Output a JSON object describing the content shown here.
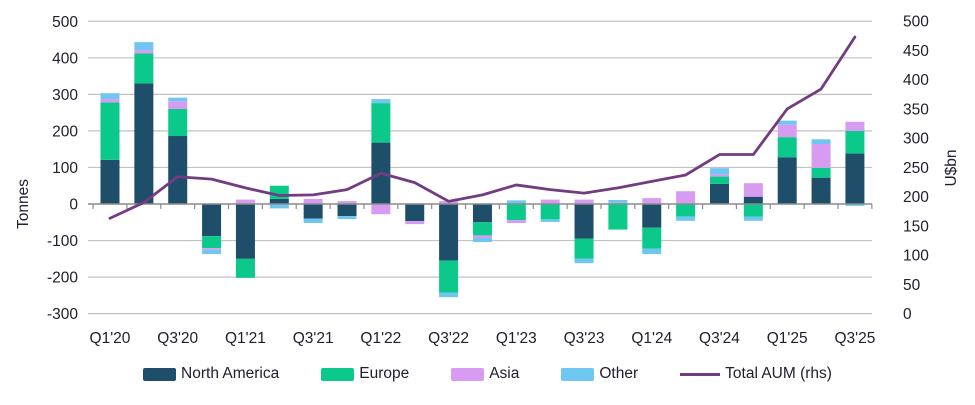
{
  "chart_data": {
    "type": "combo-stacked-bar-line",
    "categories": [
      "Q1'20",
      "Q2'20",
      "Q3'20",
      "Q4'20",
      "Q1'21",
      "Q2'21",
      "Q3'21",
      "Q4'21",
      "Q1'22",
      "Q2'22",
      "Q3'22",
      "Q4'22",
      "Q1'23",
      "Q2'23",
      "Q3'23",
      "Q4'23",
      "Q1'24",
      "Q2'24",
      "Q3'24",
      "Q4'24",
      "Q1'25",
      "Q2'25",
      "Q3'25"
    ],
    "x_tick_labels": [
      "Q1'20",
      "Q3'20",
      "Q1'21",
      "Q3'21",
      "Q1'22",
      "Q3'22",
      "Q1'23",
      "Q3'23",
      "Q1'24",
      "Q3'24",
      "Q1'25",
      "Q3'25"
    ],
    "series": [
      {
        "name": "North America",
        "type": "bar",
        "color": "#1f4e6b",
        "values": [
          121,
          330,
          186,
          -88,
          -150,
          14,
          -40,
          -33,
          168,
          -47,
          -155,
          -50,
          0,
          0,
          -95,
          0,
          -65,
          0,
          55,
          20,
          128,
          72,
          138
        ]
      },
      {
        "name": "Europe",
        "type": "bar",
        "color": "#0bc98b",
        "values": [
          157,
          82,
          74,
          -33,
          -52,
          36,
          0,
          0,
          108,
          0,
          -88,
          -36,
          -44,
          -42,
          -55,
          -70,
          -57,
          -34,
          20,
          -35,
          55,
          27,
          62
        ]
      },
      {
        "name": "Asia",
        "type": "bar",
        "color": "#d79bf2",
        "values": [
          9,
          9,
          21,
          -4,
          12,
          0,
          14,
          8,
          -28,
          -8,
          8,
          -7,
          -8,
          12,
          12,
          3,
          16,
          35,
          6,
          37,
          34,
          65,
          25
        ]
      },
      {
        "name": "Other",
        "type": "bar",
        "color": "#6ec6f1",
        "values": [
          16,
          22,
          10,
          -12,
          0,
          -12,
          -12,
          -8,
          11,
          0,
          -12,
          -11,
          10,
          -7,
          -12,
          8,
          -15,
          -12,
          17,
          -11,
          11,
          13,
          -5
        ]
      },
      {
        "name": "Total AUM (rhs)",
        "type": "line",
        "axis": "right",
        "color": "#723c80",
        "values": [
          163,
          190,
          234,
          230,
          215,
          202,
          203,
          212,
          240,
          224,
          192,
          203,
          220,
          212,
          206,
          215,
          226,
          237,
          272,
          272,
          350,
          384,
          473
        ]
      }
    ],
    "left_axis": {
      "label": "Tonnes",
      "min": -300,
      "max": 500,
      "step": 100,
      "ticks": [
        500,
        400,
        300,
        200,
        100,
        0,
        -100,
        -200,
        -300
      ]
    },
    "right_axis": {
      "label": "U$bn",
      "min": 0,
      "max": 500,
      "step": 50,
      "ticks": [
        500,
        450,
        400,
        350,
        300,
        250,
        200,
        150,
        100,
        50,
        0
      ]
    },
    "grid": true,
    "legend_position": "bottom",
    "colors": {
      "grid": "#c2c2c2",
      "zero_line": "#8c8c8c",
      "text": "#20202e"
    }
  }
}
